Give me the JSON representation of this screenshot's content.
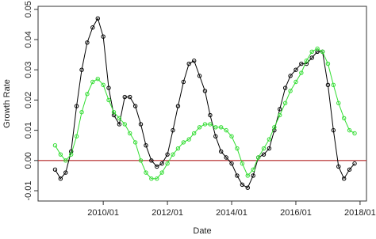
{
  "chart_data": {
    "type": "line",
    "xlabel": "Date",
    "ylabel": "Growth Rate",
    "x": [
      2008.5,
      2008.67,
      2008.83,
      2009,
      2009.17,
      2009.33,
      2009.5,
      2009.67,
      2009.83,
      2010,
      2010.17,
      2010.33,
      2010.5,
      2010.67,
      2010.83,
      2011,
      2011.17,
      2011.33,
      2011.5,
      2011.67,
      2011.83,
      2012,
      2012.17,
      2012.33,
      2012.5,
      2012.67,
      2012.83,
      2013,
      2013.17,
      2013.33,
      2013.5,
      2013.67,
      2013.83,
      2014,
      2014.17,
      2014.33,
      2014.5,
      2014.67,
      2014.83,
      2015,
      2015.17,
      2015.33,
      2015.5,
      2015.67,
      2015.83,
      2016,
      2016.17,
      2016.33,
      2016.5,
      2016.67,
      2016.83,
      2017,
      2017.17,
      2017.33,
      2017.5,
      2017.67,
      2017.83
    ],
    "series": [
      {
        "color": "#000000",
        "values": [
          -0.003,
          -0.006,
          -0.004,
          0.003,
          0.018,
          0.03,
          0.039,
          0.044,
          0.047,
          0.041,
          0.024,
          0.015,
          0.012,
          0.021,
          0.021,
          0.018,
          0.012,
          0.005,
          0,
          -0.002,
          -0.001,
          0.002,
          0.01,
          0.018,
          0.026,
          0.032,
          0.033,
          0.028,
          0.023,
          0.015,
          0.008,
          0.003,
          0.001,
          -0.001,
          -0.005,
          -0.008,
          -0.009,
          -0.005,
          0.001,
          0.002,
          0.004,
          0.01,
          0.017,
          0.024,
          0.028,
          0.03,
          0.032,
          0.032,
          0.034,
          0.036,
          0.036,
          0.025,
          0.01,
          -0.002,
          -0.006,
          -0.003,
          -0.001
        ]
      },
      {
        "color": "#33dd33",
        "values": [
          0.005,
          0.002,
          0,
          0.002,
          0.008,
          0.016,
          0.022,
          0.026,
          0.027,
          0.025,
          0.02,
          0.016,
          0.014,
          0.012,
          0.009,
          0.006,
          0,
          -0.004,
          -0.006,
          -0.006,
          -0.004,
          -0.001,
          0.002,
          0.004,
          0.006,
          0.007,
          0.009,
          0.011,
          0.012,
          0.012,
          0.011,
          0.011,
          0.01,
          0.008,
          0.004,
          -0.001,
          -0.005,
          -0.003,
          0.001,
          0.004,
          0.007,
          0.011,
          0.015,
          0.019,
          0.023,
          0.026,
          0.029,
          0.033,
          0.036,
          0.037,
          0.036,
          0.032,
          0.025,
          0.019,
          0.014,
          0.01,
          0.009
        ]
      }
    ],
    "xlim": [
      2007.97,
      2018.2
    ],
    "xticks": [
      {
        "value": 2010,
        "label": "2010/01"
      },
      {
        "value": 2012,
        "label": "2012/01"
      },
      {
        "value": 2014,
        "label": "2014/01"
      },
      {
        "value": 2016,
        "label": "2016/01"
      },
      {
        "value": 2018,
        "label": "2018/01"
      }
    ],
    "ylim": [
      -0.0134,
      0.051
    ],
    "yticks": [
      -0.01,
      {
        "value": 0,
        "label": "0.00"
      },
      0.01,
      0.02,
      0.03,
      0.04,
      0.05
    ],
    "hline": {
      "value": 0,
      "color": "#b22222"
    }
  }
}
